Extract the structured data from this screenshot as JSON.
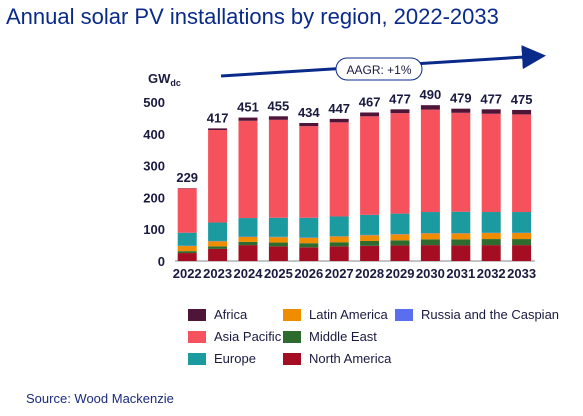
{
  "title": "Annual solar PV installations by region, 2022-2033",
  "source": "Source: Wood Mackenzie",
  "chart_data": {
    "type": "bar",
    "stacked": true,
    "y_unit_main": "GW",
    "y_unit_sub": "dc",
    "ylim": [
      0,
      500
    ],
    "yticks": [
      0,
      100,
      200,
      300,
      400,
      500
    ],
    "categories": [
      "2022",
      "2023",
      "2024",
      "2025",
      "2026",
      "2027",
      "2028",
      "2029",
      "2030",
      "2031",
      "2032",
      "2033"
    ],
    "totals": [
      229,
      417,
      451,
      455,
      434,
      447,
      467,
      477,
      490,
      479,
      477,
      475
    ],
    "series": [
      {
        "name": "North America",
        "color": "#a50e22",
        "values": [
          25,
          38,
          50,
          46,
          43,
          46,
          48,
          49,
          50,
          49,
          50,
          50
        ]
      },
      {
        "name": "Middle East",
        "color": "#2e6b2e",
        "values": [
          6,
          8,
          10,
          12,
          13,
          13,
          15,
          16,
          18,
          19,
          19,
          19
        ]
      },
      {
        "name": "Latin America",
        "color": "#f08c00",
        "values": [
          16,
          16,
          16,
          17,
          17,
          18,
          18,
          19,
          19,
          19,
          19,
          19
        ]
      },
      {
        "name": "Russia and the Caspian",
        "color": "#5b6ef0",
        "values": [
          1,
          1,
          1,
          1,
          1,
          1,
          1,
          1,
          1,
          1,
          1,
          1
        ]
      },
      {
        "name": "Europe",
        "color": "#1b9aa0",
        "values": [
          41,
          58,
          58,
          60,
          62,
          62,
          63,
          64,
          66,
          67,
          65,
          65
        ]
      },
      {
        "name": "Asia Pacific",
        "color": "#f5525e",
        "values": [
          139,
          291,
          306,
          308,
          288,
          296,
          310,
          316,
          322,
          311,
          309,
          307
        ]
      },
      {
        "name": "Africa",
        "color": "#4e1538",
        "values": [
          1,
          5,
          10,
          11,
          10,
          11,
          12,
          12,
          14,
          13,
          14,
          14
        ]
      }
    ],
    "annotation": "AAGR: +1%"
  },
  "legend": [
    {
      "name": "Africa",
      "color": "#4e1538"
    },
    {
      "name": "Latin America",
      "color": "#f08c00"
    },
    {
      "name": "Russia and the Caspian",
      "color": "#5b6ef0"
    },
    {
      "name": "Asia Pacific",
      "color": "#f5525e"
    },
    {
      "name": "Middle East",
      "color": "#2e6b2e"
    },
    {
      "name": "Europe",
      "color": "#1b9aa0"
    },
    {
      "name": "North America",
      "color": "#a50e22"
    }
  ]
}
